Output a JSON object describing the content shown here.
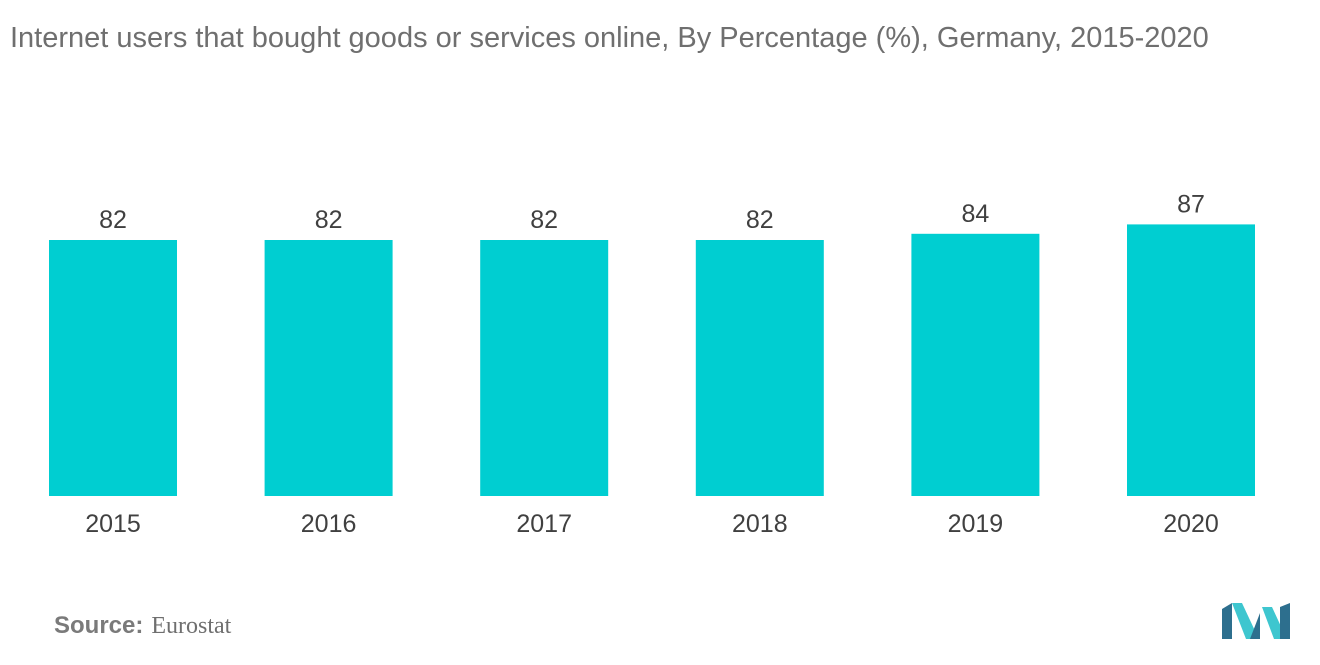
{
  "title": "Internet users that bought goods or services online, By Percentage (%), Germany, 2015-2020",
  "source": {
    "label": "Source:",
    "value": "Eurostat"
  },
  "colors": {
    "bar": "#00ced1",
    "text": "#404040",
    "muted": "#6f6f6f",
    "logo_dark": "#2d6f8e",
    "logo_light": "#3ec6cf"
  },
  "chart_data": {
    "type": "bar",
    "title": "Internet users that bought goods or services online, By Percentage (%), Germany, 2015-2020",
    "categories": [
      "2015",
      "2016",
      "2017",
      "2018",
      "2019",
      "2020"
    ],
    "values": [
      82,
      82,
      82,
      82,
      84,
      87
    ],
    "xlabel": "",
    "ylabel": "",
    "ylim": [
      0,
      87
    ],
    "grid": false,
    "legend": "none"
  },
  "logo": {
    "icon": "mordor-intelligence-logo-icon"
  }
}
